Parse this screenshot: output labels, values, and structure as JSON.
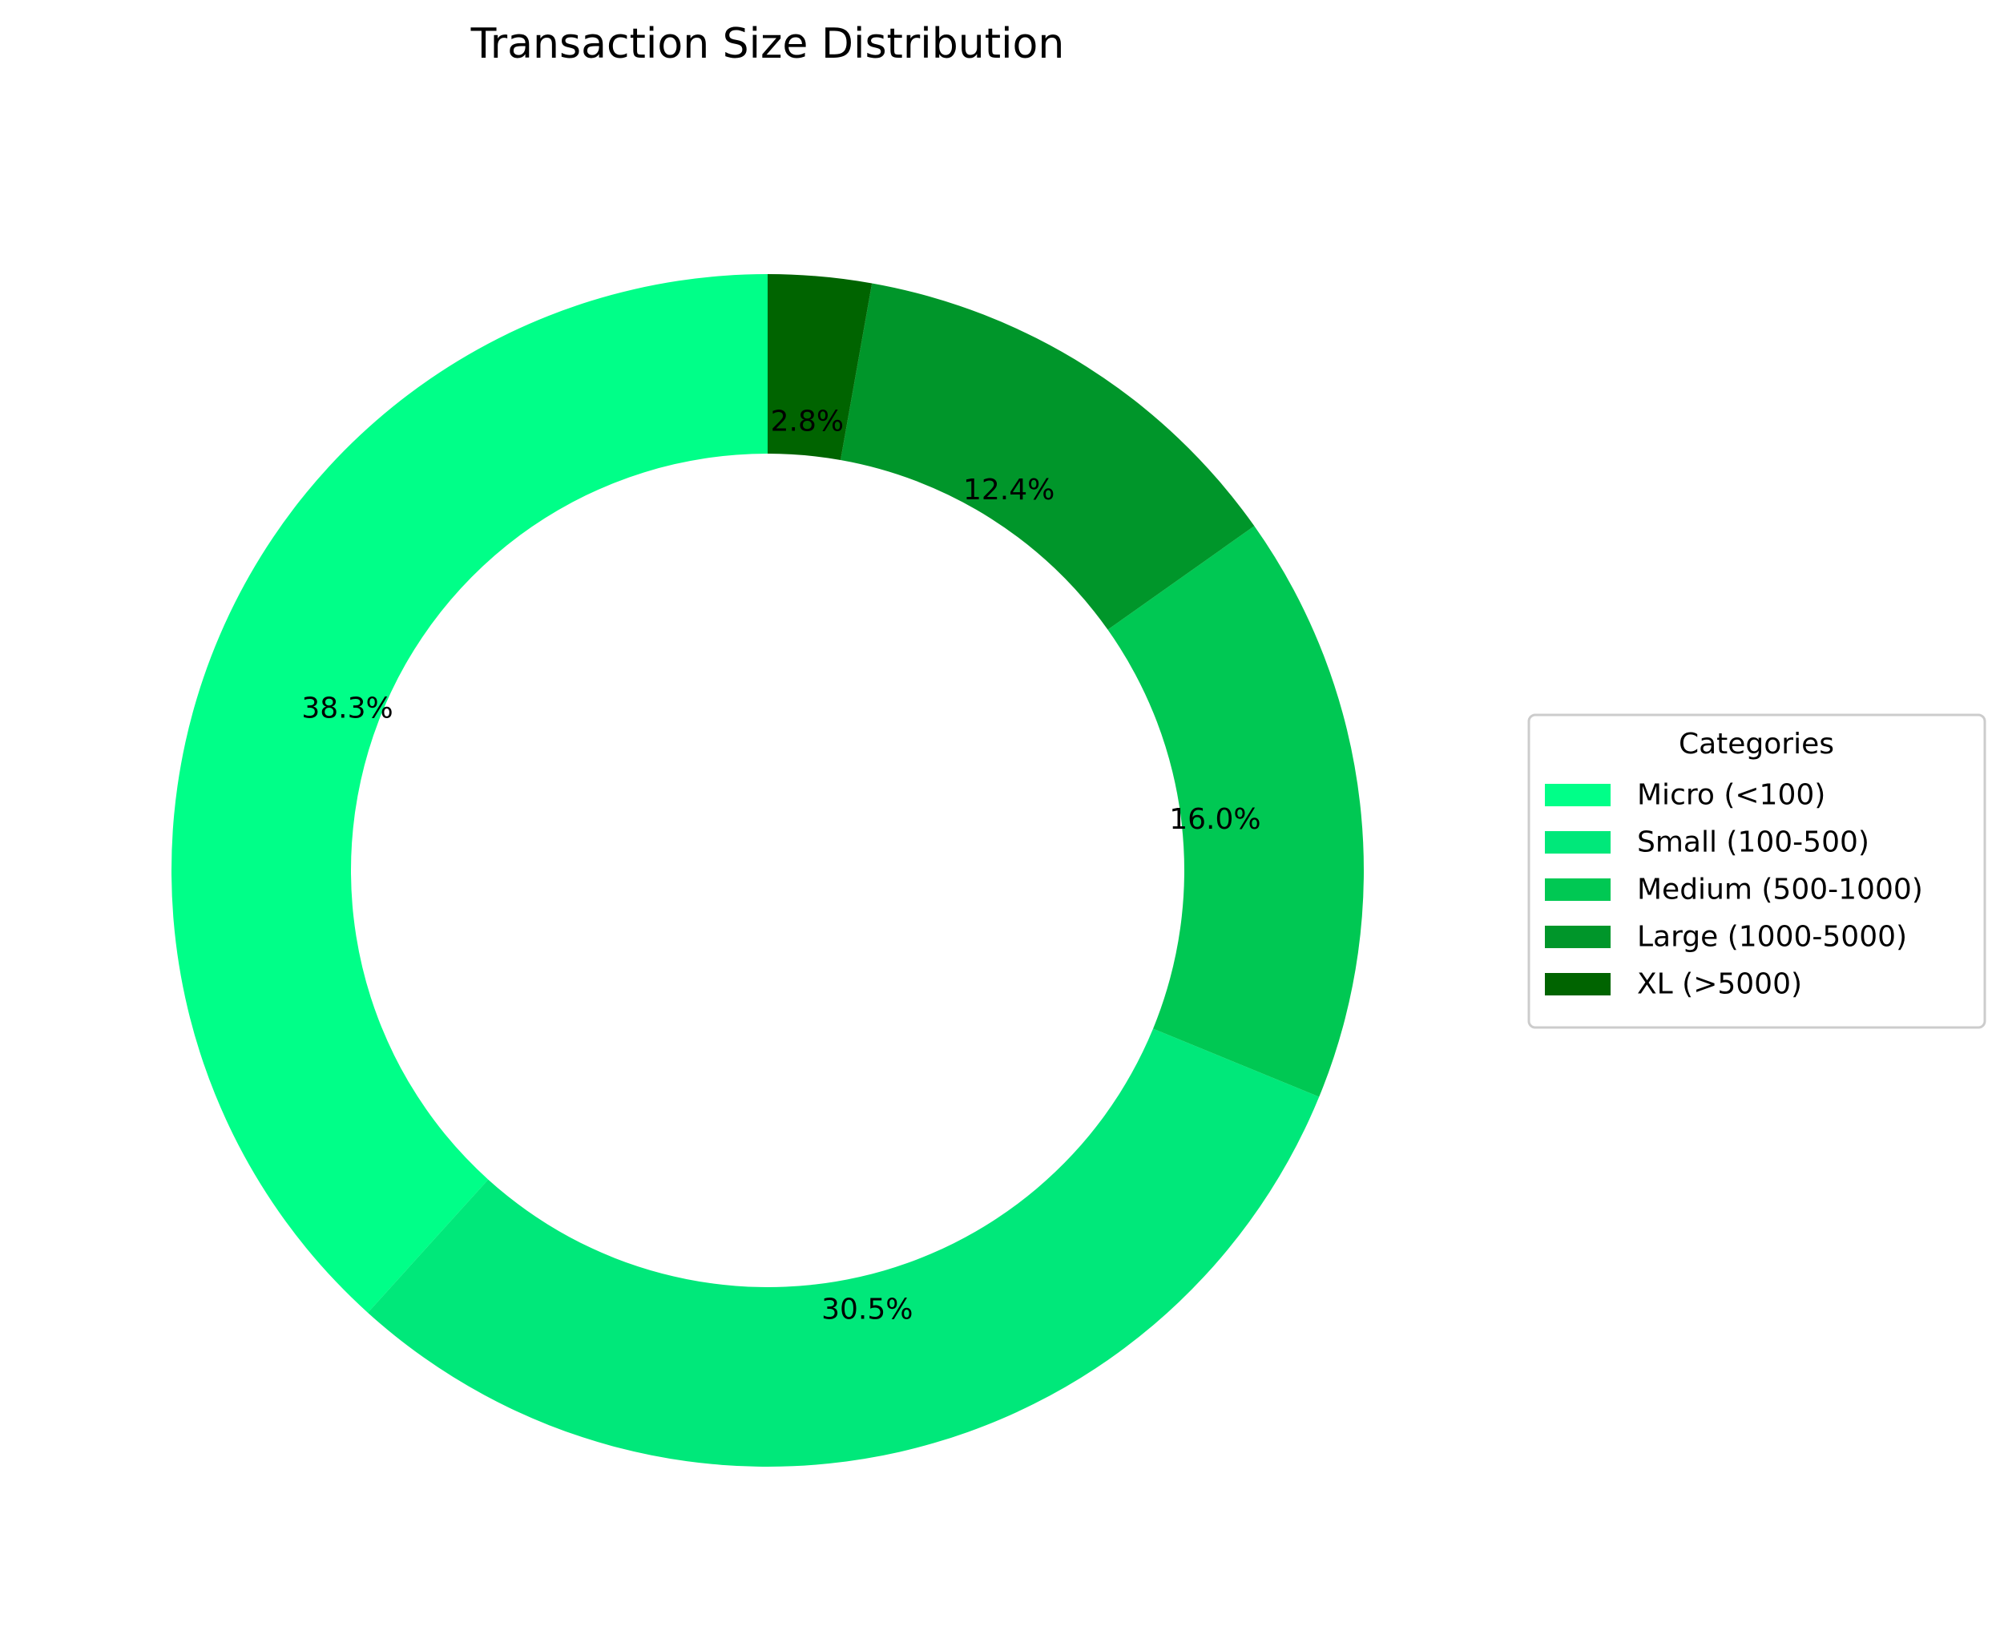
{
  "chart_data": {
    "type": "pie",
    "style": "donut",
    "title": "Transaction Size Distribution",
    "categories": [
      "Micro (<100)",
      "Small (100-500)",
      "Medium (500-1000)",
      "Large (1000-5000)",
      "XL (>5000)"
    ],
    "values": [
      38.3,
      30.5,
      16.0,
      12.4,
      2.8
    ],
    "percent_labels": [
      "38.3%",
      "30.5%",
      "16.0%",
      "12.4%",
      "2.8%"
    ],
    "colors": [
      "#00ff88",
      "#00e87a",
      "#00c853",
      "#00962a",
      "#006400"
    ],
    "start_angle_deg": 90,
    "direction": "counterclockwise",
    "legend": {
      "title": "Categories",
      "placement": "center-right"
    }
  }
}
